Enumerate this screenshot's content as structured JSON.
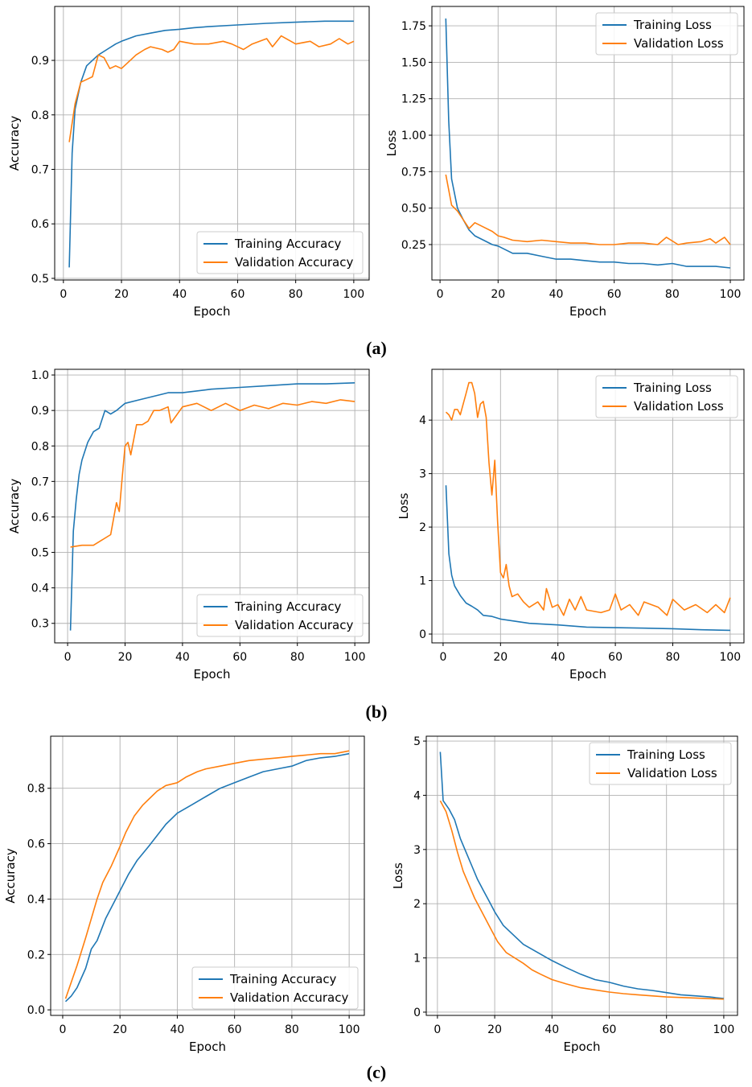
{
  "panel_labels": [
    "(a)",
    "(b)",
    "(c)"
  ],
  "colors": {
    "training": "#1f77b4",
    "validation": "#ff7f0e",
    "grid": "#b0b0b0"
  },
  "chart_data": [
    {
      "type": "line",
      "panel": "(a)",
      "xlabel": "Epoch",
      "ylabel": "Accuracy",
      "xlim": [
        -3,
        105.3
      ],
      "ylim": [
        0.497,
        0.999
      ],
      "grid": true,
      "legend": "bottom-right",
      "xticks": [
        0,
        20,
        40,
        60,
        80,
        100
      ],
      "xtick_labels": [
        "0",
        "20",
        "40",
        "60",
        "80",
        "100"
      ],
      "yticks": [
        0.5,
        0.6,
        0.7,
        0.8,
        0.9
      ],
      "ytick_labels": [
        "0.5",
        "0.6",
        "0.7",
        "0.8",
        "0.9"
      ],
      "series": [
        {
          "name": "Training Accuracy",
          "x": [
            2,
            3,
            4,
            6,
            8,
            10,
            12,
            15,
            18,
            20,
            25,
            30,
            35,
            40,
            45,
            50,
            60,
            70,
            80,
            90,
            100
          ],
          "y": [
            0.52,
            0.73,
            0.81,
            0.86,
            0.89,
            0.9,
            0.91,
            0.92,
            0.93,
            0.935,
            0.945,
            0.95,
            0.955,
            0.957,
            0.96,
            0.962,
            0.965,
            0.968,
            0.97,
            0.972,
            0.972
          ]
        },
        {
          "name": "Validation Accuracy",
          "x": [
            2,
            4,
            6,
            8,
            10,
            12,
            14,
            16,
            18,
            20,
            22,
            25,
            28,
            30,
            34,
            36,
            38,
            40,
            45,
            50,
            55,
            58,
            62,
            65,
            70,
            72,
            75,
            80,
            85,
            88,
            92,
            95,
            98,
            100
          ],
          "y": [
            0.75,
            0.82,
            0.86,
            0.865,
            0.87,
            0.91,
            0.905,
            0.885,
            0.89,
            0.885,
            0.895,
            0.91,
            0.92,
            0.925,
            0.92,
            0.915,
            0.92,
            0.935,
            0.93,
            0.93,
            0.935,
            0.93,
            0.92,
            0.93,
            0.94,
            0.925,
            0.945,
            0.93,
            0.935,
            0.925,
            0.93,
            0.94,
            0.93,
            0.935
          ]
        }
      ]
    },
    {
      "type": "line",
      "panel": "(a)",
      "xlabel": "Epoch",
      "ylabel": "Loss",
      "xlim": [
        -2.8,
        104.7
      ],
      "ylim": [
        0.007,
        1.883
      ],
      "grid": true,
      "legend": "top-right",
      "xticks": [
        0,
        20,
        40,
        60,
        80,
        100
      ],
      "xtick_labels": [
        "0",
        "20",
        "40",
        "60",
        "80",
        "100"
      ],
      "yticks": [
        0.25,
        0.5,
        0.75,
        1.0,
        1.25,
        1.5,
        1.75
      ],
      "ytick_labels": [
        "0.25",
        "0.50",
        "0.75",
        "1.00",
        "1.25",
        "1.50",
        "1.75"
      ],
      "series": [
        {
          "name": "Training Loss",
          "x": [
            2,
            3,
            4,
            6,
            8,
            10,
            12,
            15,
            18,
            20,
            25,
            30,
            35,
            40,
            45,
            50,
            55,
            60,
            65,
            70,
            75,
            80,
            85,
            90,
            95,
            100
          ],
          "y": [
            1.8,
            1.1,
            0.7,
            0.5,
            0.42,
            0.35,
            0.31,
            0.28,
            0.25,
            0.24,
            0.19,
            0.19,
            0.17,
            0.15,
            0.15,
            0.14,
            0.13,
            0.13,
            0.12,
            0.12,
            0.11,
            0.12,
            0.1,
            0.1,
            0.1,
            0.09
          ]
        },
        {
          "name": "Validation Loss",
          "x": [
            2,
            4,
            6,
            8,
            10,
            12,
            15,
            18,
            20,
            22,
            25,
            30,
            35,
            40,
            45,
            50,
            55,
            60,
            65,
            70,
            75,
            78,
            82,
            85,
            90,
            93,
            95,
            98,
            100
          ],
          "y": [
            0.73,
            0.52,
            0.48,
            0.42,
            0.36,
            0.4,
            0.37,
            0.34,
            0.31,
            0.3,
            0.28,
            0.27,
            0.28,
            0.27,
            0.26,
            0.26,
            0.25,
            0.25,
            0.26,
            0.26,
            0.25,
            0.3,
            0.25,
            0.26,
            0.27,
            0.29,
            0.26,
            0.3,
            0.25
          ]
        }
      ]
    },
    {
      "type": "line",
      "panel": "(b)",
      "xlabel": "Epoch",
      "ylabel": "Accuracy",
      "xlim": [
        -4.5,
        105
      ],
      "ylim": [
        0.245,
        1.016
      ],
      "grid": true,
      "legend": "bottom-right",
      "xticks": [
        0,
        20,
        40,
        60,
        80,
        100
      ],
      "xtick_labels": [
        "0",
        "20",
        "40",
        "60",
        "80",
        "100"
      ],
      "yticks": [
        0.3,
        0.4,
        0.5,
        0.6,
        0.7,
        0.8,
        0.9,
        1.0
      ],
      "ytick_labels": [
        "0.3",
        "0.4",
        "0.5",
        "0.6",
        "0.7",
        "0.8",
        "0.9",
        "1.0"
      ],
      "series": [
        {
          "name": "Training Accuracy",
          "x": [
            1,
            2,
            3,
            4,
            5,
            7,
            9,
            11,
            13,
            15,
            17,
            20,
            25,
            30,
            35,
            40,
            50,
            60,
            70,
            80,
            90,
            100
          ],
          "y": [
            0.28,
            0.56,
            0.65,
            0.72,
            0.76,
            0.81,
            0.84,
            0.85,
            0.9,
            0.89,
            0.9,
            0.92,
            0.93,
            0.94,
            0.95,
            0.95,
            0.96,
            0.965,
            0.97,
            0.975,
            0.975,
            0.978
          ]
        },
        {
          "name": "Validation Accuracy",
          "x": [
            1,
            5,
            9,
            12,
            15,
            17,
            18,
            19,
            20,
            21,
            22,
            24,
            26,
            28,
            30,
            32,
            35,
            36,
            40,
            45,
            50,
            55,
            60,
            65,
            70,
            75,
            80,
            85,
            90,
            95,
            100
          ],
          "y": [
            0.515,
            0.52,
            0.52,
            0.535,
            0.55,
            0.64,
            0.615,
            0.71,
            0.8,
            0.81,
            0.775,
            0.86,
            0.86,
            0.87,
            0.9,
            0.9,
            0.91,
            0.865,
            0.91,
            0.92,
            0.9,
            0.92,
            0.9,
            0.915,
            0.905,
            0.92,
            0.915,
            0.925,
            0.92,
            0.93,
            0.925
          ]
        }
      ]
    },
    {
      "type": "line",
      "panel": "(b)",
      "xlabel": "Epoch",
      "ylabel": "Loss",
      "xlim": [
        -3.9,
        104.8
      ],
      "ylim": [
        -0.165,
        4.95
      ],
      "grid": true,
      "legend": "top-right",
      "xticks": [
        0,
        20,
        40,
        60,
        80,
        100
      ],
      "xtick_labels": [
        "0",
        "20",
        "40",
        "60",
        "80",
        "100"
      ],
      "yticks": [
        0,
        1,
        2,
        3,
        4
      ],
      "ytick_labels": [
        "0",
        "1",
        "2",
        "3",
        "4"
      ],
      "series": [
        {
          "name": "Training Loss",
          "x": [
            1,
            2,
            3,
            4,
            6,
            8,
            10,
            12,
            14,
            17,
            20,
            25,
            30,
            40,
            50,
            60,
            70,
            80,
            90,
            100
          ],
          "y": [
            2.78,
            1.5,
            1.1,
            0.9,
            0.72,
            0.58,
            0.52,
            0.45,
            0.35,
            0.33,
            0.28,
            0.24,
            0.2,
            0.17,
            0.13,
            0.12,
            0.11,
            0.1,
            0.08,
            0.07
          ]
        },
        {
          "name": "Validation Loss",
          "x": [
            1,
            2,
            3,
            4,
            5,
            6,
            7,
            8,
            9,
            10,
            11,
            12,
            13,
            14,
            15,
            16,
            17,
            18,
            19,
            20,
            21,
            22,
            23,
            24,
            26,
            28,
            30,
            33,
            35,
            36,
            38,
            40,
            42,
            44,
            46,
            48,
            50,
            55,
            58,
            60,
            62,
            65,
            68,
            70,
            75,
            78,
            80,
            84,
            88,
            92,
            95,
            98,
            100
          ],
          "y": [
            4.15,
            4.1,
            4.0,
            4.2,
            4.2,
            4.1,
            4.3,
            4.5,
            4.7,
            4.7,
            4.5,
            4.05,
            4.3,
            4.35,
            4.05,
            3.2,
            2.6,
            3.25,
            2.1,
            1.15,
            1.05,
            1.3,
            0.9,
            0.7,
            0.75,
            0.6,
            0.5,
            0.6,
            0.45,
            0.85,
            0.5,
            0.55,
            0.35,
            0.65,
            0.45,
            0.7,
            0.45,
            0.4,
            0.45,
            0.75,
            0.45,
            0.55,
            0.35,
            0.6,
            0.5,
            0.35,
            0.65,
            0.45,
            0.55,
            0.4,
            0.55,
            0.4,
            0.68
          ]
        }
      ]
    },
    {
      "type": "line",
      "panel": "(c)",
      "xlabel": "Epoch",
      "ylabel": "Accuracy",
      "xlim": [
        -4.2,
        105.3
      ],
      "ylim": [
        -0.02,
        0.988
      ],
      "grid": true,
      "legend": "bottom-right",
      "xticks": [
        0,
        20,
        40,
        60,
        80,
        100
      ],
      "xtick_labels": [
        "0",
        "20",
        "40",
        "60",
        "80",
        "100"
      ],
      "yticks": [
        0,
        0.2,
        0.4,
        0.6,
        0.8
      ],
      "ytick_labels": [
        "0.0",
        "0.2",
        "0.4",
        "0.6",
        "0.8"
      ],
      "series": [
        {
          "name": "Training Accuracy",
          "x": [
            1,
            3,
            5,
            8,
            10,
            12,
            15,
            18,
            20,
            23,
            26,
            30,
            33,
            36,
            40,
            45,
            50,
            55,
            60,
            65,
            70,
            75,
            80,
            85,
            90,
            95,
            100
          ],
          "y": [
            0.03,
            0.05,
            0.08,
            0.15,
            0.22,
            0.25,
            0.33,
            0.39,
            0.43,
            0.49,
            0.54,
            0.59,
            0.63,
            0.67,
            0.71,
            0.74,
            0.77,
            0.8,
            0.82,
            0.84,
            0.86,
            0.87,
            0.88,
            0.9,
            0.91,
            0.915,
            0.925
          ]
        },
        {
          "name": "Validation Accuracy",
          "x": [
            1,
            3,
            5,
            8,
            10,
            12,
            14,
            17,
            20,
            22,
            25,
            28,
            30,
            33,
            36,
            40,
            43,
            47,
            50,
            55,
            60,
            65,
            70,
            75,
            80,
            85,
            90,
            95,
            100
          ],
          "y": [
            0.04,
            0.1,
            0.16,
            0.26,
            0.33,
            0.4,
            0.46,
            0.52,
            0.59,
            0.64,
            0.7,
            0.74,
            0.76,
            0.79,
            0.81,
            0.82,
            0.84,
            0.86,
            0.87,
            0.88,
            0.89,
            0.9,
            0.905,
            0.91,
            0.915,
            0.92,
            0.925,
            0.925,
            0.935
          ]
        }
      ]
    },
    {
      "type": "line",
      "panel": "(c)",
      "xlabel": "Epoch",
      "ylabel": "Loss",
      "xlim": [
        -3.9,
        104.8
      ],
      "ylim": [
        -0.06,
        5.09
      ],
      "grid": true,
      "legend": "top-right",
      "xticks": [
        0,
        20,
        40,
        60,
        80,
        100
      ],
      "xtick_labels": [
        "0",
        "20",
        "40",
        "60",
        "80",
        "100"
      ],
      "yticks": [
        0,
        1,
        2,
        3,
        4,
        5
      ],
      "ytick_labels": [
        "0",
        "1",
        "2",
        "3",
        "4",
        "5"
      ],
      "series": [
        {
          "name": "Training Loss",
          "x": [
            1,
            2,
            4,
            6,
            8,
            10,
            12,
            14,
            16,
            18,
            20,
            23,
            26,
            30,
            35,
            40,
            45,
            50,
            55,
            60,
            65,
            70,
            75,
            80,
            85,
            90,
            95,
            100
          ],
          "y": [
            4.8,
            3.9,
            3.75,
            3.55,
            3.2,
            2.95,
            2.7,
            2.45,
            2.25,
            2.05,
            1.85,
            1.6,
            1.45,
            1.25,
            1.1,
            0.95,
            0.82,
            0.7,
            0.6,
            0.55,
            0.48,
            0.43,
            0.4,
            0.36,
            0.32,
            0.3,
            0.28,
            0.25
          ]
        },
        {
          "name": "Validation Loss",
          "x": [
            1,
            3,
            5,
            7,
            9,
            11,
            13,
            15,
            17,
            19,
            21,
            24,
            27,
            30,
            33,
            36,
            40,
            45,
            50,
            55,
            60,
            65,
            70,
            80,
            90,
            100
          ],
          "y": [
            3.9,
            3.7,
            3.35,
            2.95,
            2.6,
            2.35,
            2.1,
            1.9,
            1.7,
            1.5,
            1.3,
            1.1,
            1.0,
            0.9,
            0.78,
            0.7,
            0.6,
            0.52,
            0.45,
            0.41,
            0.37,
            0.34,
            0.32,
            0.28,
            0.26,
            0.24
          ]
        }
      ]
    }
  ]
}
